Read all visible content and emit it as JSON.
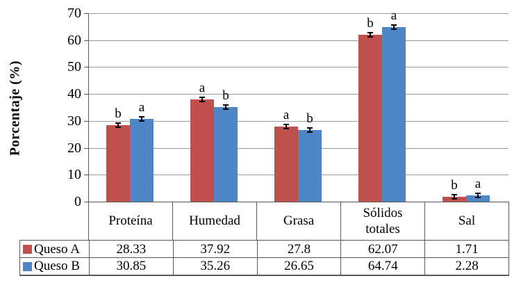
{
  "chart_data": {
    "type": "bar",
    "title": "",
    "ylabel": "Porcentaje (%)",
    "xlabel": "",
    "ylim": [
      0,
      70
    ],
    "yticks": [
      0,
      10,
      20,
      30,
      40,
      50,
      60,
      70
    ],
    "grid": true,
    "legend_position": "table-left",
    "categories": [
      "Proteína",
      "Humedad",
      "Grasa",
      "Sólidos totales",
      "Sal"
    ],
    "series": [
      {
        "name": "Queso A",
        "color": "#C0504D",
        "values": [
          28.33,
          37.92,
          27.8,
          62.07,
          1.71
        ],
        "sig_letters": [
          "b",
          "a",
          "a",
          "b",
          "b"
        ]
      },
      {
        "name": "Queso B",
        "color": "#4F86C6",
        "values": [
          30.85,
          35.26,
          26.65,
          64.74,
          2.28
        ],
        "sig_letters": [
          "a",
          "b",
          "b",
          "a",
          "a"
        ]
      }
    ],
    "error_bar_size": 0.5,
    "axis_color": "#595959",
    "grid_color": "#9B9B9B",
    "table": {
      "shows_values": true,
      "row_labels": [
        "Queso A",
        "Queso B"
      ]
    }
  }
}
